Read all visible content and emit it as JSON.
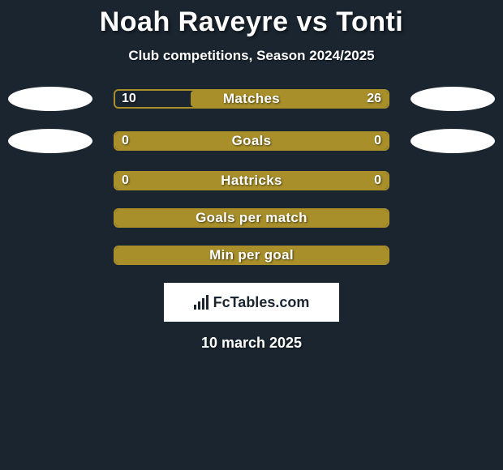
{
  "title": "Noah Raveyre vs Tonti",
  "subtitle": "Club competitions, Season 2024/2025",
  "colors": {
    "background": "#1a2530",
    "bar_border": "#a88f2a",
    "bar_fill": "#a88f2a",
    "ellipse": "#ffffff",
    "text": "#ffffff"
  },
  "bars": [
    {
      "label": "Matches",
      "left_val": "10",
      "right_val": "26",
      "left_pct": 27.8,
      "right_pct": 72.2,
      "has_ellipses": true,
      "left_fill_right": true
    },
    {
      "label": "Goals",
      "left_val": "0",
      "right_val": "0",
      "left_pct": 0,
      "right_pct": 0,
      "has_ellipses": true,
      "left_fill_right": false
    },
    {
      "label": "Hattricks",
      "left_val": "0",
      "right_val": "0",
      "left_pct": 0,
      "right_pct": 0,
      "has_ellipses": false,
      "left_fill_right": false
    },
    {
      "label": "Goals per match",
      "left_val": "",
      "right_val": "",
      "left_pct": 0,
      "right_pct": 0,
      "has_ellipses": false,
      "left_fill_right": false
    },
    {
      "label": "Min per goal",
      "left_val": "",
      "right_val": "",
      "left_pct": 0,
      "right_pct": 0,
      "has_ellipses": false,
      "left_fill_right": false
    }
  ],
  "logo": "FcTables.com",
  "date": "10 march 2025"
}
